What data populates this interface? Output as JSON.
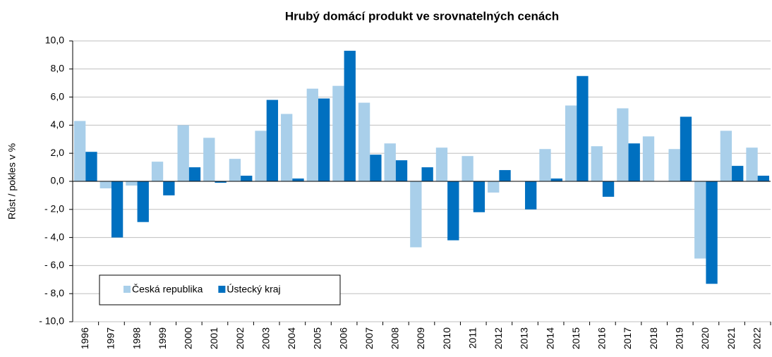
{
  "chart_data": {
    "type": "bar",
    "title": "Hrubý domácí produkt ve srovnatelných cenách",
    "ylabel": "Růst / pokles v %",
    "categories": [
      "1996",
      "1997",
      "1998",
      "1999",
      "2000",
      "2001",
      "2002",
      "2003",
      "2004",
      "2005",
      "2006",
      "2007",
      "2008",
      "2009",
      "2010",
      "2011",
      "2012",
      "2013",
      "2014",
      "2015",
      "2016",
      "2017",
      "2018",
      "2019",
      "2020",
      "2021",
      "2022"
    ],
    "series": [
      {
        "name": "Česká republika",
        "color": "#a9cfea",
        "values": [
          4.3,
          -0.5,
          -0.3,
          1.4,
          4.0,
          3.1,
          1.6,
          3.6,
          4.8,
          6.6,
          6.8,
          5.6,
          2.7,
          -4.7,
          2.4,
          1.8,
          -0.8,
          0.0,
          2.3,
          5.4,
          2.5,
          5.2,
          3.2,
          2.3,
          -5.5,
          3.6,
          2.4
        ]
      },
      {
        "name": "Ústecký kraj",
        "color": "#0070c0",
        "values": [
          2.1,
          -4.0,
          -2.9,
          -1.0,
          1.0,
          -0.1,
          0.4,
          5.8,
          0.2,
          5.9,
          9.3,
          1.9,
          1.5,
          1.0,
          -4.2,
          -2.2,
          0.8,
          -2.0,
          0.2,
          7.5,
          -1.1,
          2.7,
          0.0,
          4.6,
          -7.3,
          1.1,
          0.4
        ]
      }
    ],
    "ylim": [
      -10,
      10
    ],
    "yticks": [
      {
        "value": -10,
        "label": "- 10,0"
      },
      {
        "value": -8,
        "label": "- 8,0"
      },
      {
        "value": -6,
        "label": "- 6,0"
      },
      {
        "value": -4,
        "label": "- 4,0"
      },
      {
        "value": -2,
        "label": "- 2,0"
      },
      {
        "value": 0,
        "label": "0,0"
      },
      {
        "value": 2,
        "label": "2,0"
      },
      {
        "value": 4,
        "label": "4,0"
      },
      {
        "value": 6,
        "label": "6,0"
      },
      {
        "value": 8,
        "label": "8,0"
      },
      {
        "value": 10,
        "label": "10,0"
      }
    ],
    "grid": true,
    "legend": "lower left"
  }
}
